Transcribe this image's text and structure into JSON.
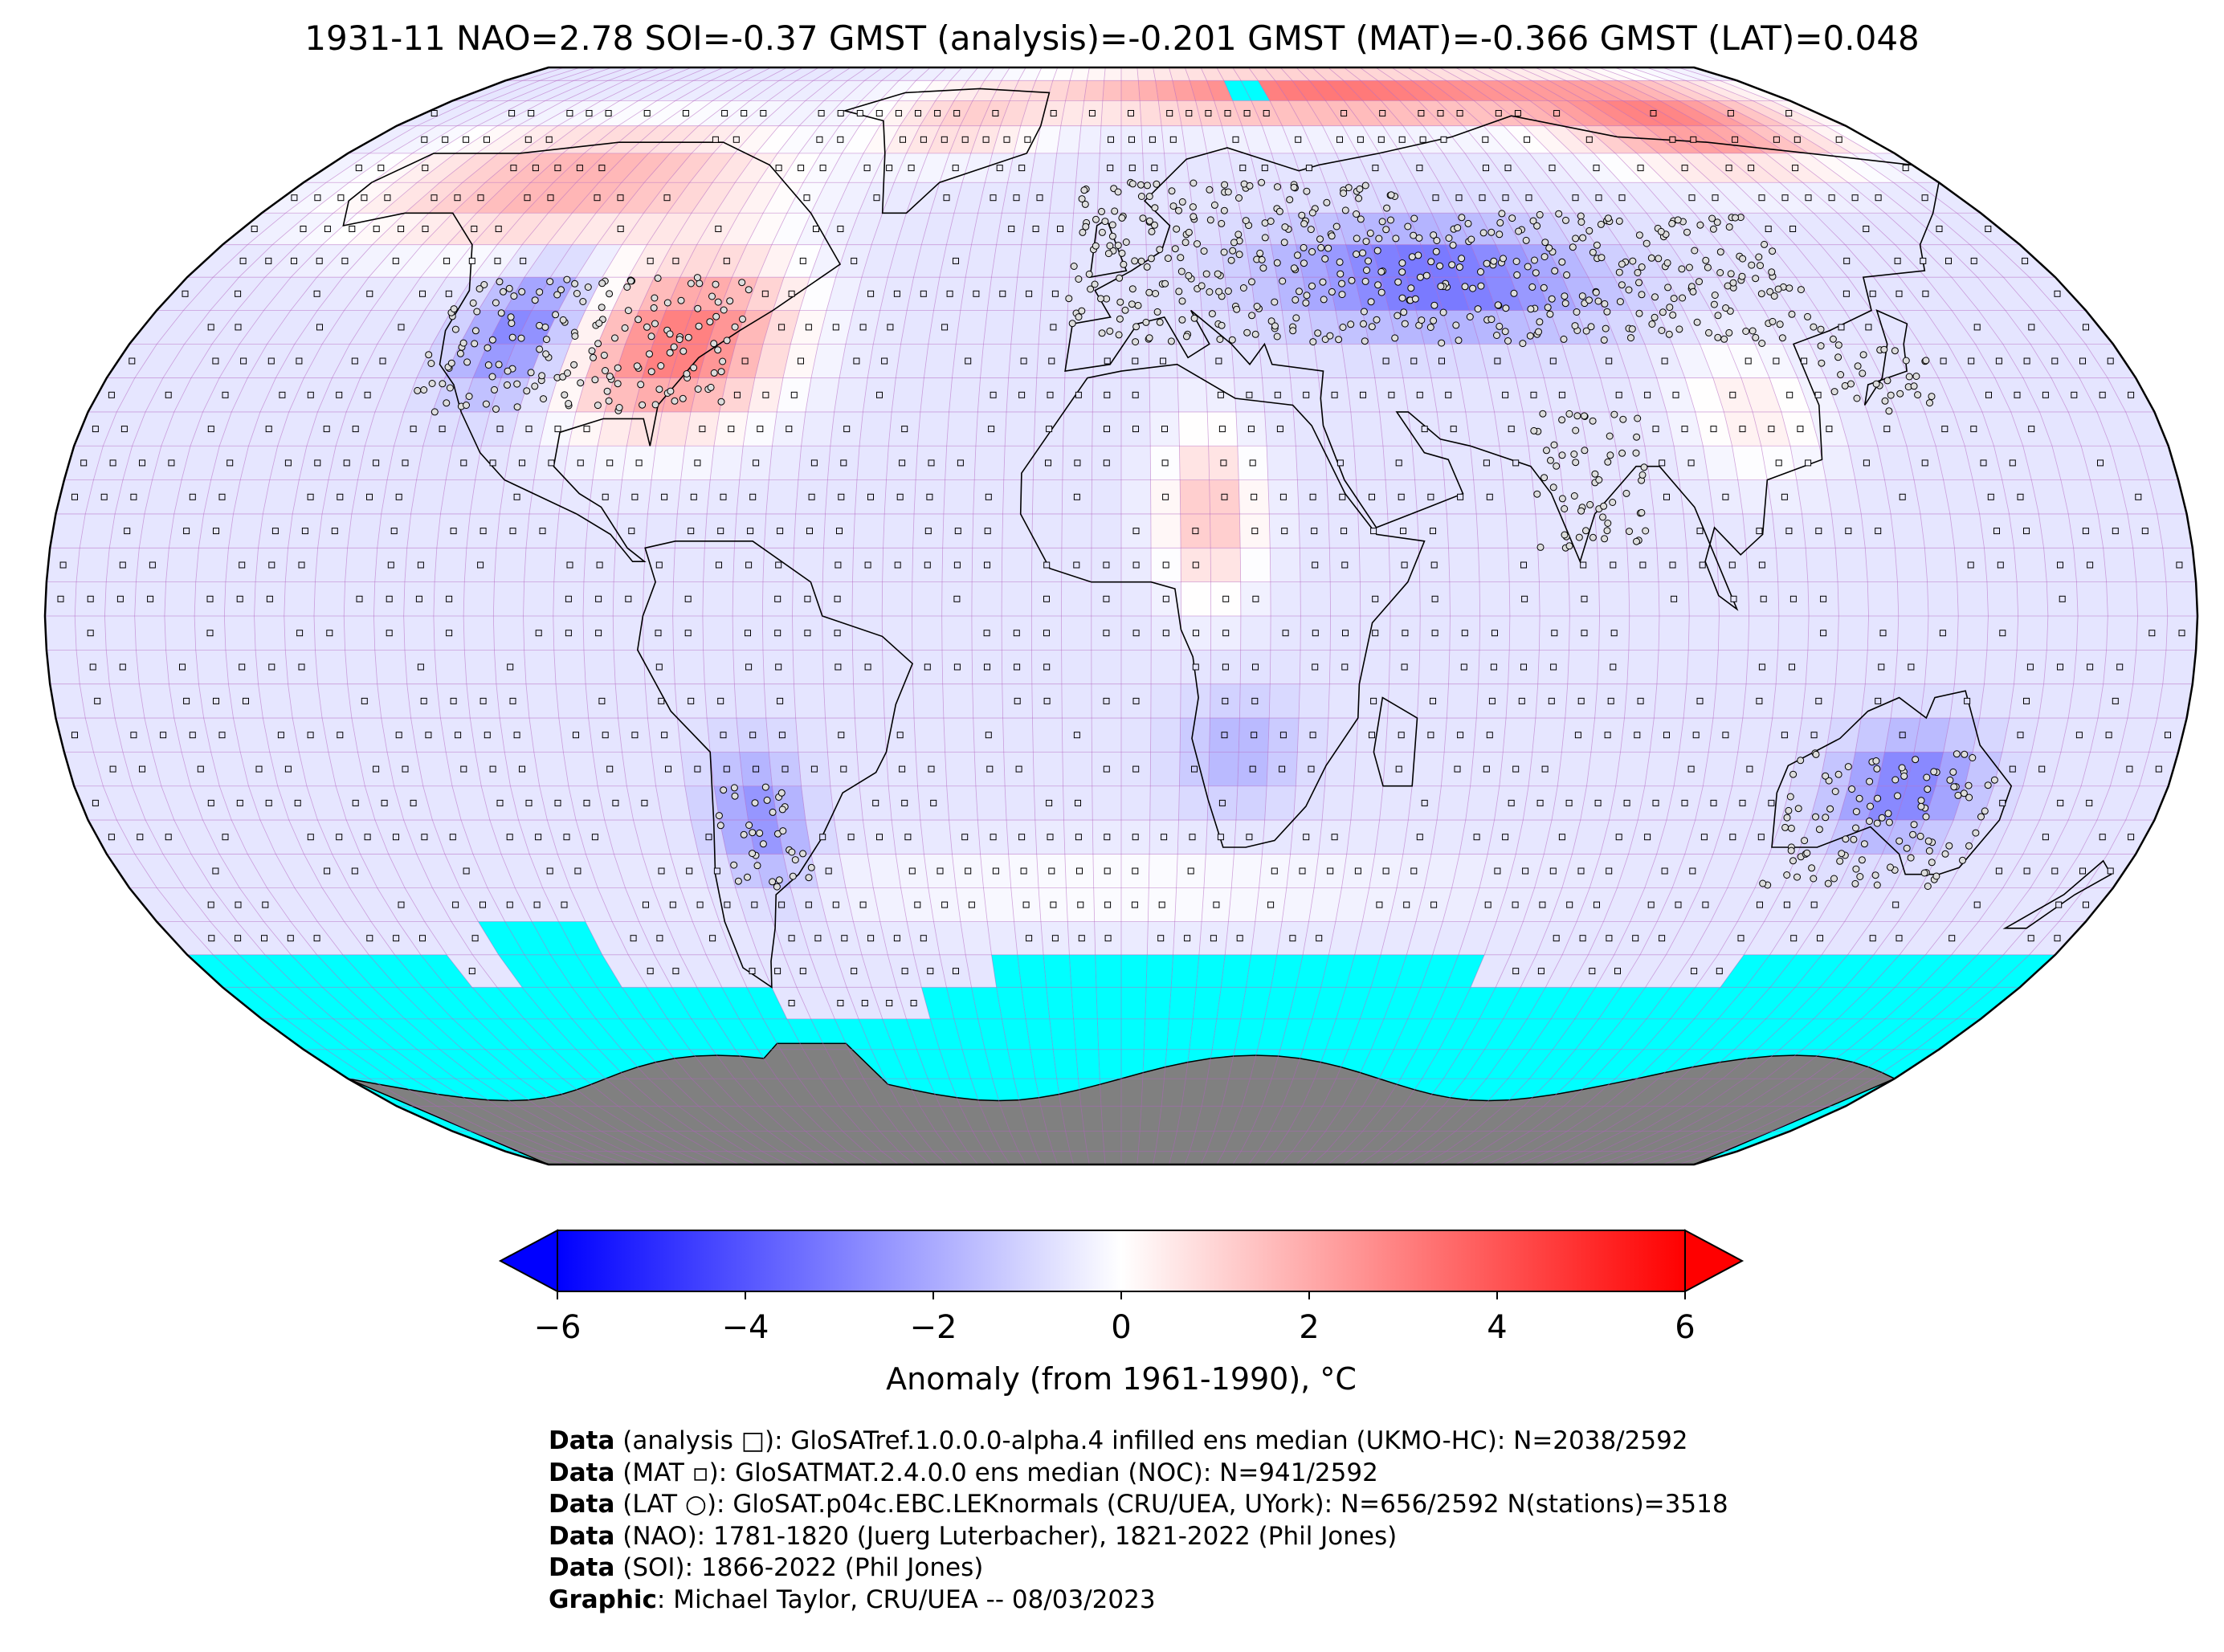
{
  "title": "1931-11 NAO=2.78 SOI=-0.37 GMST (analysis)=-0.201 GMST (MAT)=-0.366 GMST (LAT)=0.048",
  "colors": {
    "cold": "#0000ff",
    "neutral": "#ffffff",
    "warm": "#ff0000",
    "missing": "#00ffff",
    "land_antarctica": "#808080",
    "grid": "#b060c0",
    "coast": "#000000"
  },
  "colorbar": {
    "min": -6,
    "max": 6,
    "ticks": [
      "−6",
      "−4",
      "−2",
      "0",
      "2",
      "4",
      "6"
    ],
    "label": "Anomaly (from 1961-1990), °C",
    "extend": "both"
  },
  "map": {
    "projection": "Robinson",
    "grid_resolution_deg": 5,
    "marker_legend": {
      "analysis": "square",
      "MAT": "small-square",
      "LAT": "circle"
    }
  },
  "credits": [
    {
      "label": "Data",
      "text": " (analysis □): GloSATref.1.0.0.0-alpha.4 infilled ens median (UKMO-HC): N=2038/2592"
    },
    {
      "label": "Data",
      "text": " (MAT ▫): GloSATMAT.2.4.0.0 ens median (NOC): N=941/2592"
    },
    {
      "label": "Data",
      "text": " (LAT ○): GloSAT.p04c.EBC.LEKnormals (CRU/UEA, UYork): N=656/2592 N(stations)=3518"
    },
    {
      "label": "Data",
      "text": " (NAO): 1781-1820 (Juerg Luterbacher), 1821-2022 (Phil Jones)"
    },
    {
      "label": "Data",
      "text": " (SOI): 1866-2022 (Phil Jones)"
    },
    {
      "label": "Graphic",
      "text": ": Michael Taylor, CRU/UEA -- 08/03/2023"
    }
  ]
}
